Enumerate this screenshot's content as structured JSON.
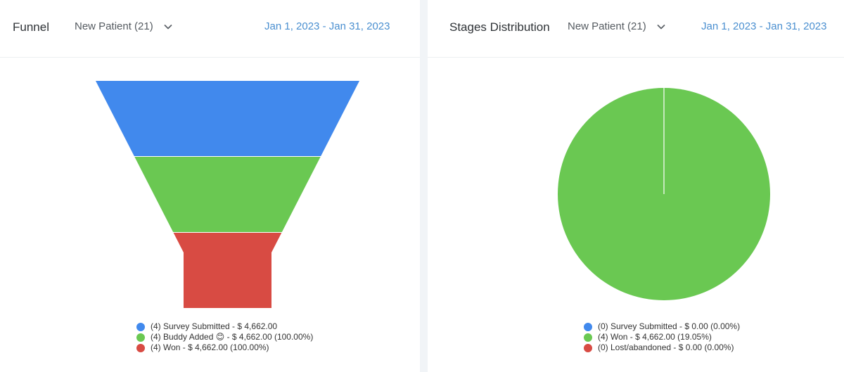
{
  "colors": {
    "blue": "#4189ed",
    "green": "#6ac852",
    "red": "#d84b43",
    "accent_link": "#4a8fd0"
  },
  "funnel_panel": {
    "title": "Funnel",
    "pipeline_select": "New Patient (21)",
    "pipeline_select_icon": "chevron-down-icon",
    "date_range": "Jan 1, 2023 - Jan 31, 2023",
    "legend": [
      {
        "text": "(4) Survey Submitted - $ 4,662.00",
        "color": "#4189ed"
      },
      {
        "text": "(4) Buddy Added 😊 - $ 4,662.00 (100.00%)",
        "color": "#6ac852"
      },
      {
        "text": "(4) Won - $ 4,662.00 (100.00%)",
        "color": "#d84b43"
      }
    ]
  },
  "stages_panel": {
    "title": "Stages Distribution",
    "pipeline_select": "New Patient (21)",
    "pipeline_select_icon": "chevron-down-icon",
    "date_range": "Jan 1, 2023 - Jan 31, 2023",
    "legend": [
      {
        "text": "(0) Survey Submitted - $ 0.00 (0.00%)",
        "color": "#4189ed"
      },
      {
        "text": "(4) Won - $ 4,662.00 (19.05%)",
        "color": "#6ac852"
      },
      {
        "text": "(0) Lost/abandoned - $ 0.00 (0.00%)",
        "color": "#d84b43"
      }
    ]
  },
  "chart_data": [
    {
      "type": "funnel",
      "categories": [
        "Survey Submitted",
        "Buddy Added 😊",
        "Won"
      ],
      "values": [
        4,
        4,
        4
      ],
      "amounts": [
        4662.0,
        4662.0,
        4662.0
      ],
      "colors": [
        "#4189ed",
        "#6ac852",
        "#d84b43"
      ]
    },
    {
      "type": "pie",
      "categories": [
        "Survey Submitted",
        "Won",
        "Lost/abandoned"
      ],
      "values": [
        0,
        4,
        0
      ],
      "amounts": [
        0.0,
        4662.0,
        0.0
      ],
      "colors": [
        "#4189ed",
        "#6ac852",
        "#d84b43"
      ]
    }
  ]
}
